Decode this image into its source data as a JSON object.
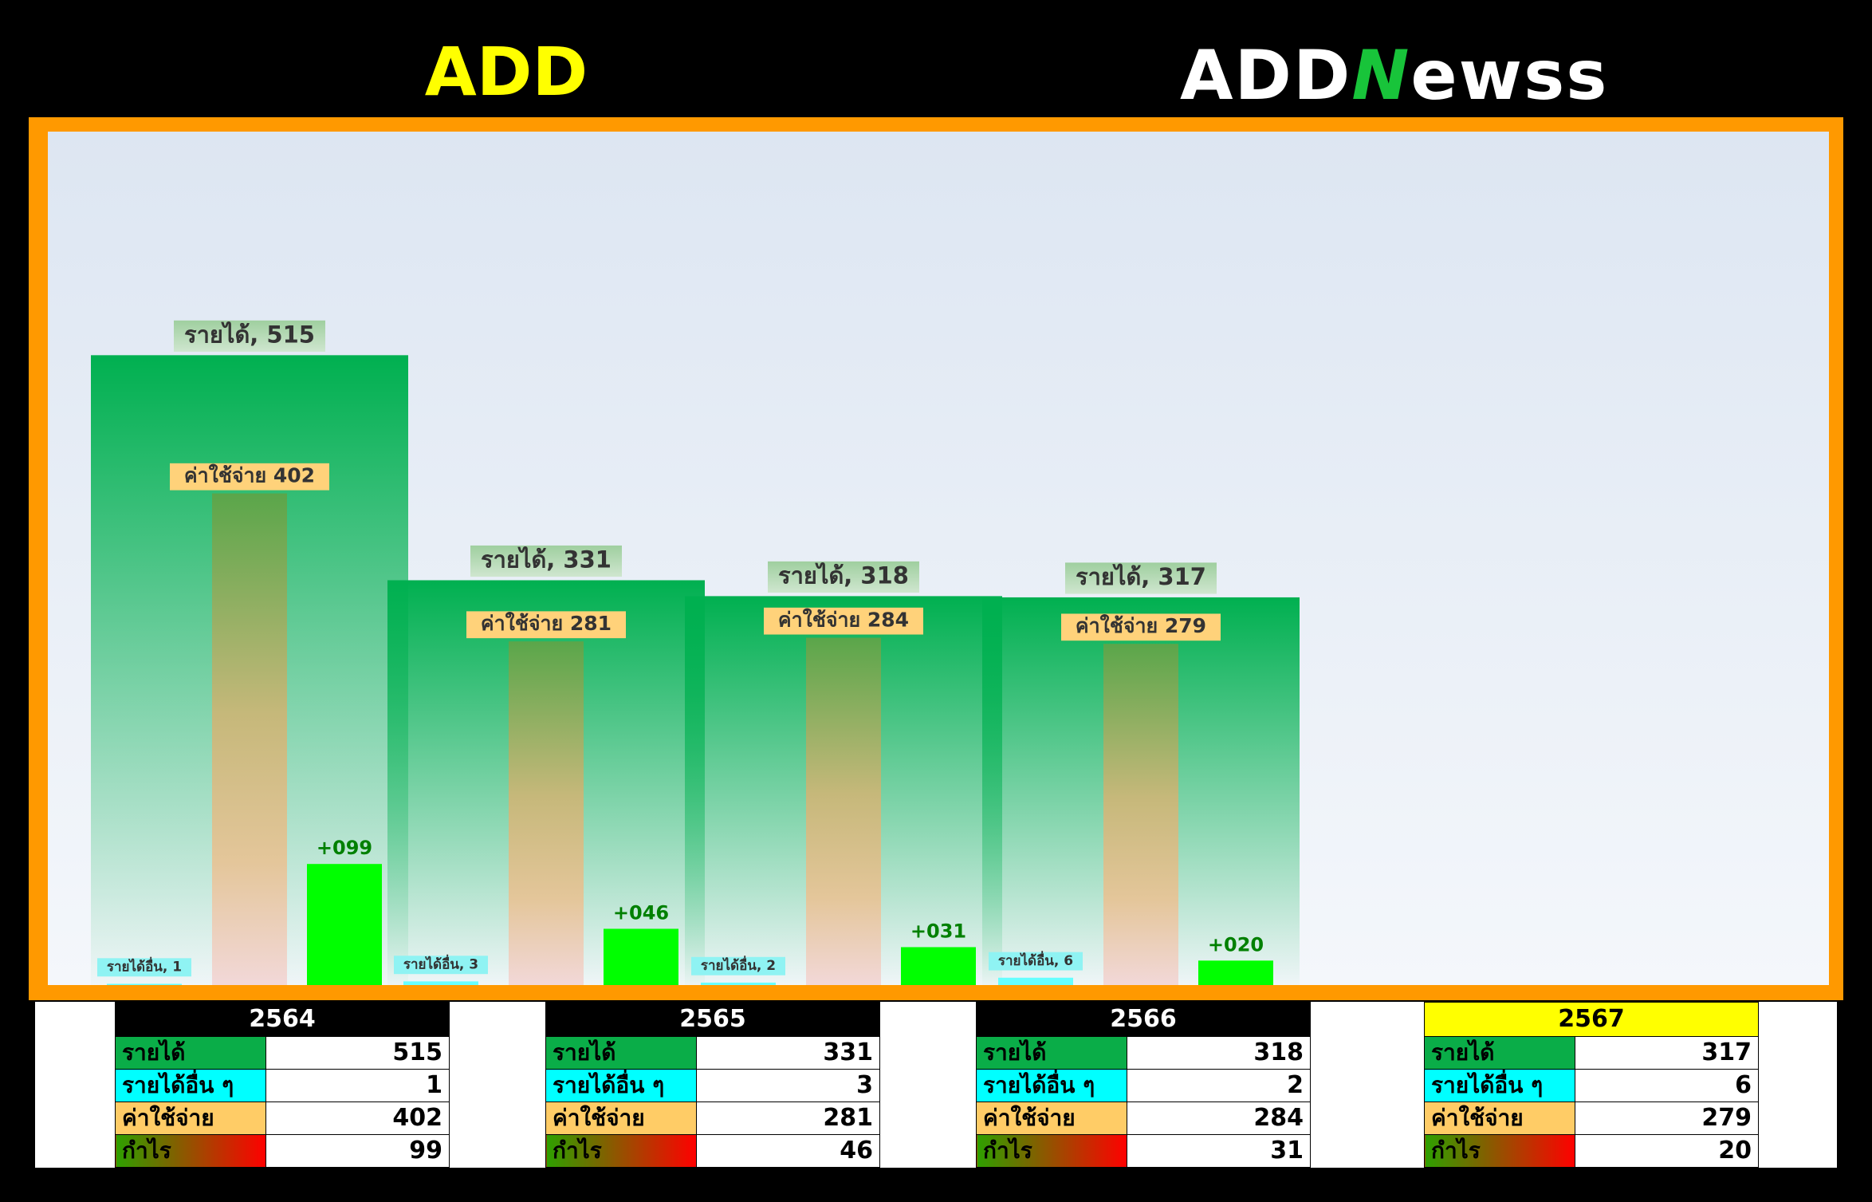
{
  "header": {
    "title": "ADD",
    "logo_part1": "ADD",
    "logo_part2": "N",
    "logo_part3": "ewss"
  },
  "colors": {
    "revenue": "#00b050",
    "expense": "#ffc000",
    "other_income": "#66ffff",
    "profit": "#00ff00",
    "profit_label": "#008000",
    "frame": "#ff9900",
    "current_year": "#ffff00"
  },
  "chart_data": {
    "type": "bar",
    "categories": [
      "2564",
      "2565",
      "2566",
      "2567"
    ],
    "series": [
      {
        "name": "รายได้",
        "values": [
          515,
          331,
          318,
          317
        ]
      },
      {
        "name": "รายได้อื่น",
        "values": [
          1,
          3,
          2,
          6
        ]
      },
      {
        "name": "ค่าใช้จ่าย",
        "values": [
          402,
          281,
          284,
          279
        ]
      },
      {
        "name": "กำไร",
        "values": [
          99,
          46,
          31,
          20
        ]
      }
    ],
    "data_labels": {
      "revenue": [
        "รายได้, 515",
        "รายได้, 331",
        "รายได้, 318",
        "รายได้, 317"
      ],
      "other": [
        "รายได้อื่น, 1",
        "รายได้อื่น, 3",
        "รายได้อื่น, 2",
        "รายได้อื่น, 6"
      ],
      "expense": [
        "ค่าใช้จ่าย 402",
        "ค่าใช้จ่าย 281",
        "ค่าใช้จ่าย 284",
        "ค่าใช้จ่าย 279"
      ],
      "profit": [
        "+099",
        "+046",
        "+031",
        "+020"
      ]
    },
    "ylim": [
      0,
      600
    ],
    "grid": false,
    "legend": "none"
  },
  "tables": [
    {
      "year": "2564",
      "current": false,
      "rows": [
        {
          "label": "รายได้",
          "value": "515"
        },
        {
          "label": "รายได้อื่น ๆ",
          "value": "1"
        },
        {
          "label": "ค่าใช้จ่าย",
          "value": "402"
        },
        {
          "label": "กำไร",
          "value": "99"
        }
      ]
    },
    {
      "year": "2565",
      "current": false,
      "rows": [
        {
          "label": "รายได้",
          "value": "331"
        },
        {
          "label": "รายได้อื่น ๆ",
          "value": "3"
        },
        {
          "label": "ค่าใช้จ่าย",
          "value": "281"
        },
        {
          "label": "กำไร",
          "value": "46"
        }
      ]
    },
    {
      "year": "2566",
      "current": false,
      "rows": [
        {
          "label": "รายได้",
          "value": "318"
        },
        {
          "label": "รายได้อื่น ๆ",
          "value": "2"
        },
        {
          "label": "ค่าใช้จ่าย",
          "value": "284"
        },
        {
          "label": "กำไร",
          "value": "31"
        }
      ]
    },
    {
      "year": "2567",
      "current": true,
      "rows": [
        {
          "label": "รายได้",
          "value": "317"
        },
        {
          "label": "รายได้อื่น ๆ",
          "value": "6"
        },
        {
          "label": "ค่าใช้จ่าย",
          "value": "279"
        },
        {
          "label": "กำไร",
          "value": "20"
        }
      ]
    }
  ]
}
